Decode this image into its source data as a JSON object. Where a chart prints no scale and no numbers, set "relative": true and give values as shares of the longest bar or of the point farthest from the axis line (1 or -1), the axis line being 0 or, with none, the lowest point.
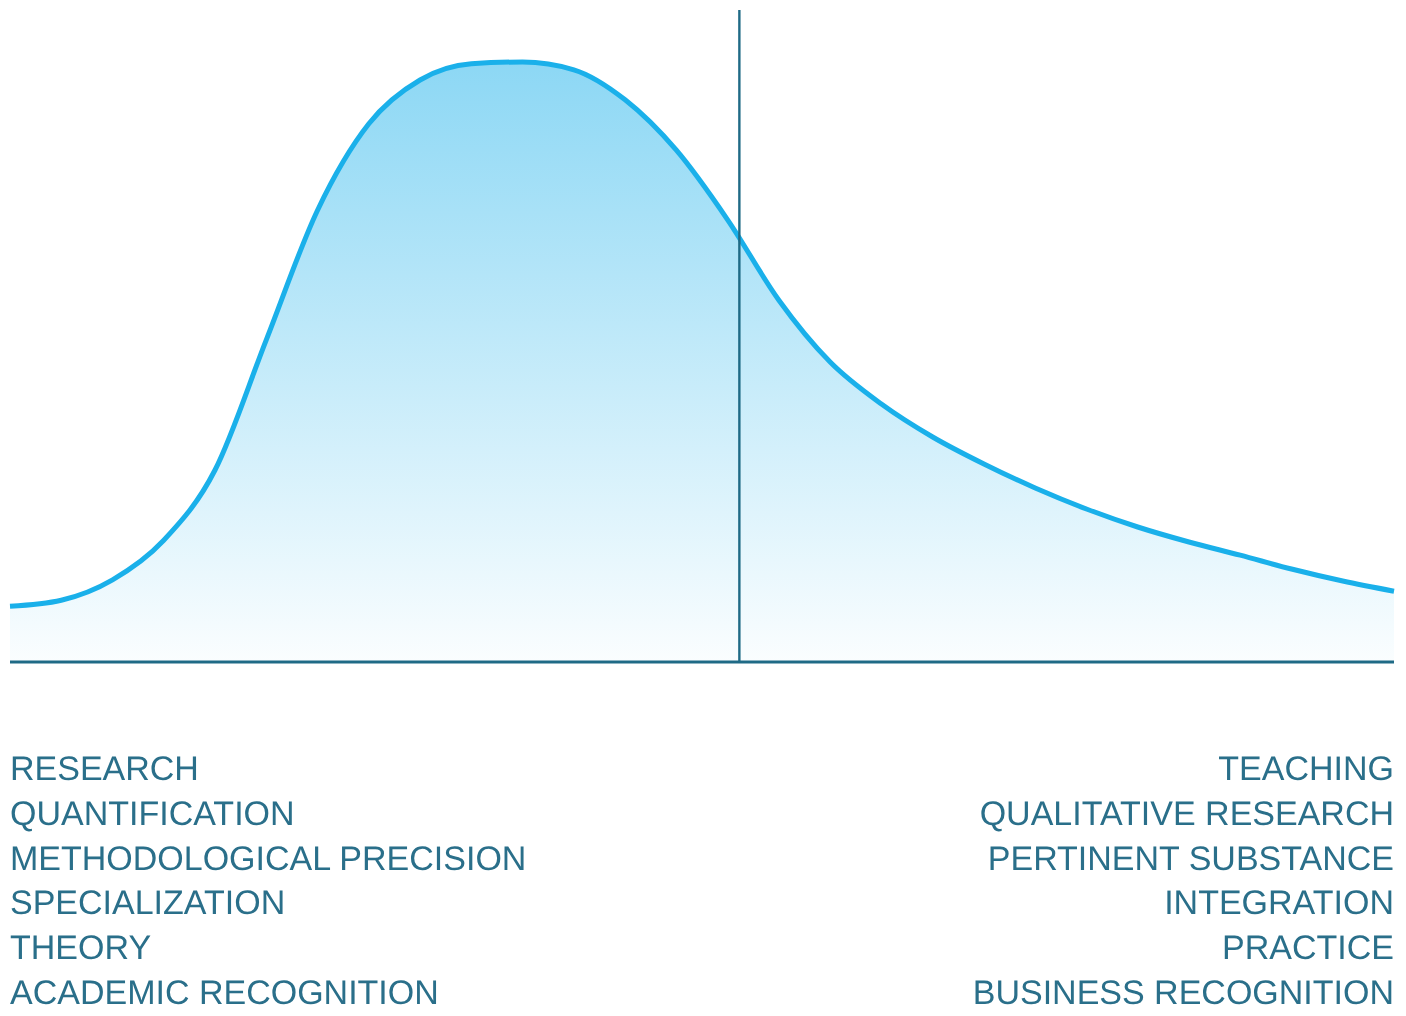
{
  "chart_data": {
    "type": "area",
    "relative": true,
    "categories": [
      null,
      null,
      null,
      null,
      null,
      null,
      null,
      null,
      null,
      null,
      null,
      null,
      null,
      null,
      null,
      null,
      null,
      null,
      null,
      null,
      null,
      null,
      null,
      null,
      null,
      null,
      null,
      null
    ],
    "series": [
      {
        "color": "#1ab0ea",
        "values": [
          0.093,
          0.103,
          0.137,
          0.203,
          0.32,
          0.537,
          0.753,
          0.897,
          0.97,
          0.997,
          1,
          0.987,
          0.937,
          0.853,
          0.737,
          0.603,
          0.5,
          0.43,
          0.375,
          0.33,
          0.29,
          0.255,
          0.225,
          0.2,
          0.178,
          0.155,
          0.135,
          0.118
        ]
      }
    ],
    "annotations": [
      "RESEARCH",
      "QUANTIFICATION",
      "METHODOLOGICAL PRECISION",
      "SPECIALIZATION",
      "THEORY",
      "ACADEMIC RECOGNITION",
      "TEACHING",
      "QUALITATIVE RESEARCH",
      "PERTINENT SUBSTANCE",
      "INTEGRATION",
      "PRACTICE",
      "BUSINESS RECOGNITION"
    ]
  }
}
